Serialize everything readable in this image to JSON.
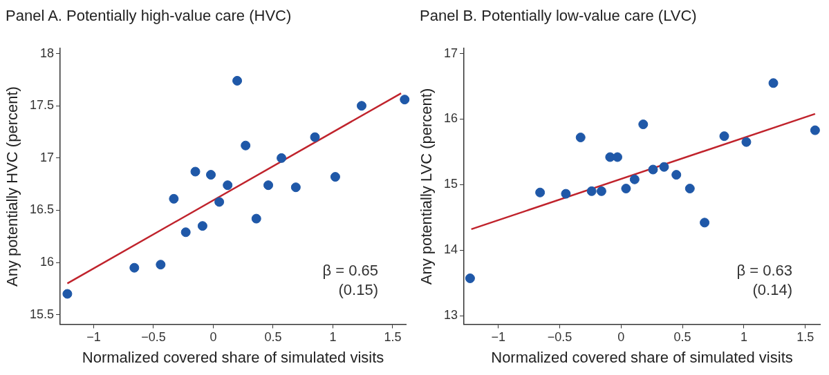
{
  "chart_data": [
    {
      "type": "scatter",
      "title": "Panel A. Potentially high-value care (HVC)",
      "xlabel": "Normalized covered share of simulated visits",
      "ylabel": "Any potentially HVC (percent)",
      "annotations": [
        "β = 0.65",
        "(0.15)"
      ],
      "xlim": [
        -1.28,
        1.61
      ],
      "ylim": [
        15.41,
        18.05
      ],
      "xticks": [
        -1,
        -0.5,
        0,
        0.5,
        1,
        1.5
      ],
      "yticks": [
        15.5,
        16,
        16.5,
        17,
        17.5,
        18
      ],
      "grid": false,
      "legend": false,
      "series": [
        {
          "type": "scatter",
          "marker": "circle",
          "color": "#1f58a8",
          "x": [
            -1.22,
            -0.66,
            -0.44,
            -0.33,
            -0.23,
            -0.15,
            -0.09,
            -0.02,
            0.05,
            0.12,
            0.2,
            0.27,
            0.36,
            0.46,
            0.57,
            0.69,
            0.85,
            1.02,
            1.24,
            1.6
          ],
          "values": [
            15.7,
            15.95,
            15.98,
            16.61,
            16.29,
            16.87,
            16.35,
            16.84,
            16.58,
            16.74,
            17.74,
            17.12,
            16.42,
            16.74,
            17.0,
            16.72,
            17.2,
            16.82,
            17.5,
            17.56
          ]
        },
        {
          "type": "line",
          "marker": "none",
          "color": "#c0232c",
          "x": [
            -1.22,
            1.57
          ],
          "values": [
            15.8,
            17.62
          ]
        }
      ]
    },
    {
      "type": "scatter",
      "title": "Panel B. Potentially low-value care (LVC)",
      "xlabel": "Normalized covered share of simulated visits",
      "ylabel": "Any potentially LVC (percent)",
      "annotations": [
        "β = 0.63",
        "(0.14)"
      ],
      "xlim": [
        -1.28,
        1.62
      ],
      "ylim": [
        12.87,
        17.08
      ],
      "xticks": [
        -1,
        -0.5,
        0,
        0.5,
        1,
        1.5
      ],
      "yticks": [
        13,
        14,
        15,
        16,
        17
      ],
      "grid": false,
      "legend": false,
      "series": [
        {
          "type": "scatter",
          "marker": "circle",
          "color": "#1f58a8",
          "x": [
            -1.23,
            -0.66,
            -0.45,
            -0.33,
            -0.24,
            -0.16,
            -0.09,
            -0.03,
            0.04,
            0.11,
            0.18,
            0.26,
            0.35,
            0.45,
            0.56,
            0.68,
            0.84,
            1.02,
            1.24,
            1.58
          ],
          "values": [
            13.57,
            14.88,
            14.86,
            15.72,
            14.9,
            14.9,
            15.42,
            15.42,
            14.94,
            15.08,
            15.92,
            15.23,
            15.27,
            15.15,
            14.94,
            14.42,
            15.74,
            15.65,
            16.55,
            15.83
          ]
        },
        {
          "type": "line",
          "marker": "none",
          "color": "#c0232c",
          "x": [
            -1.22,
            1.58
          ],
          "values": [
            14.32,
            16.08
          ]
        }
      ]
    }
  ]
}
